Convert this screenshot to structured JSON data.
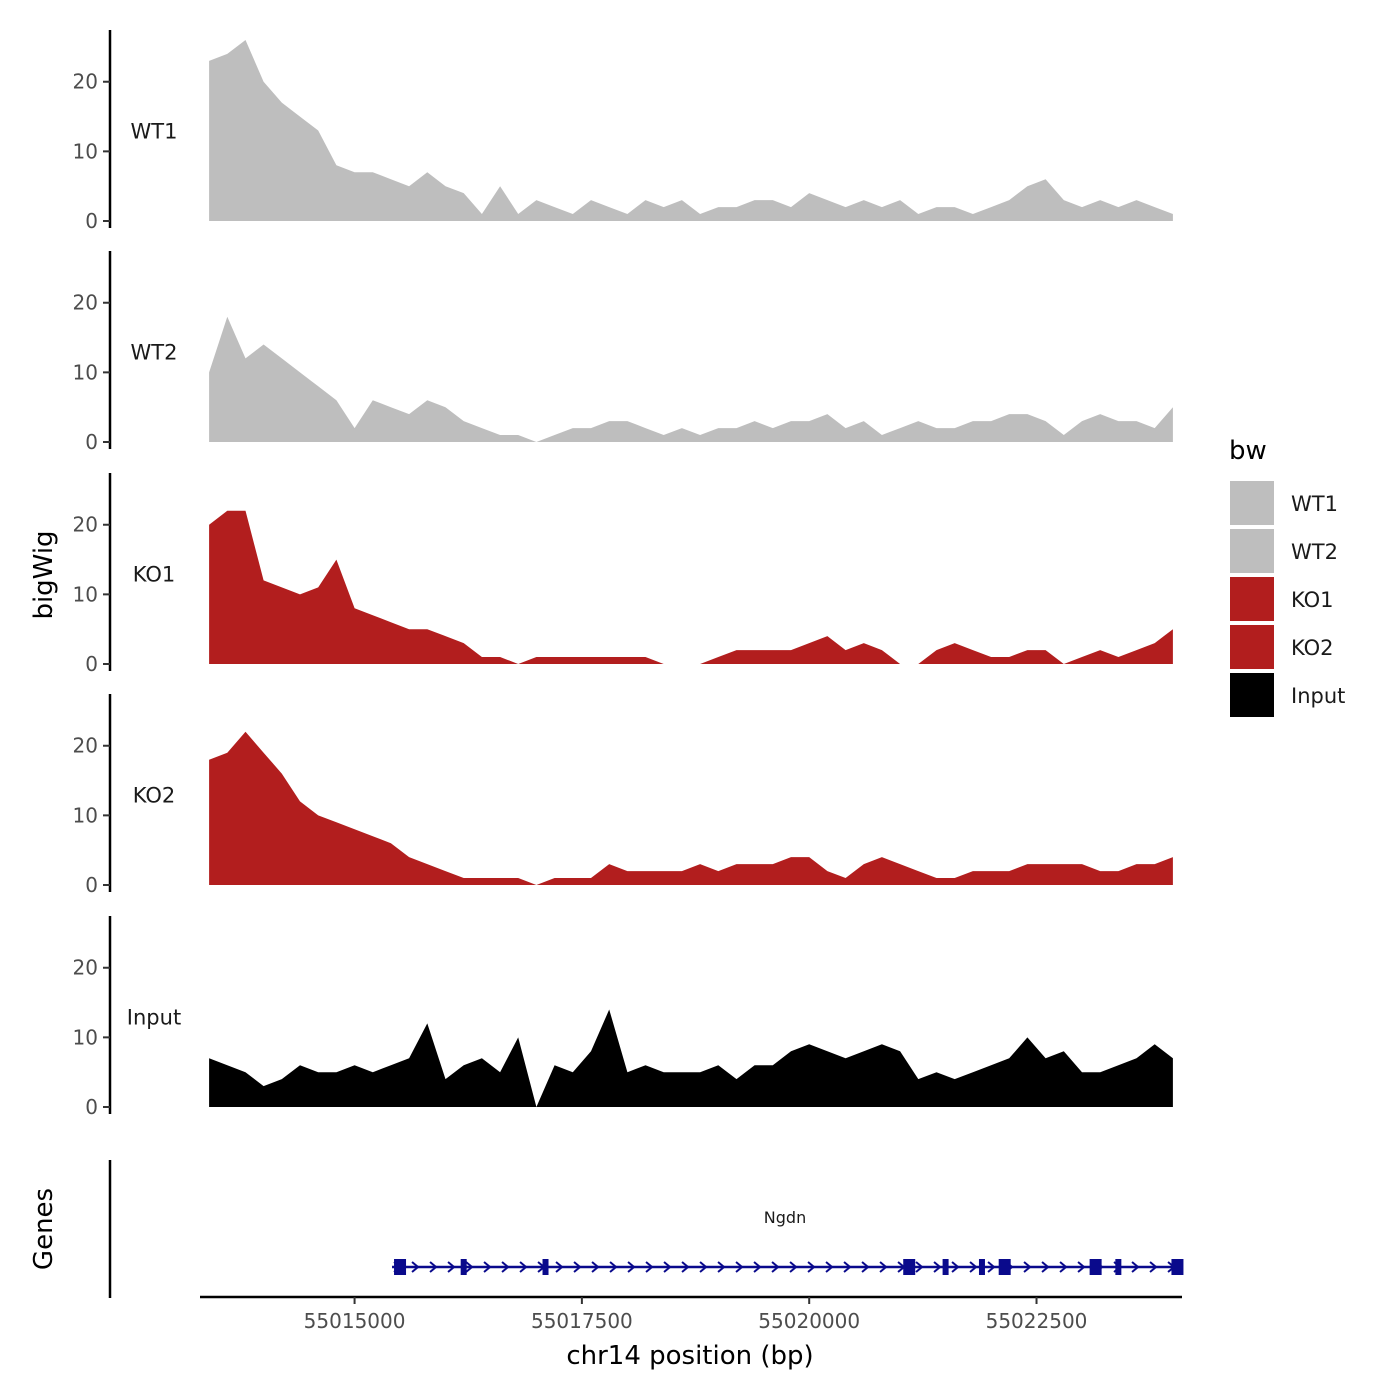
{
  "chart_data": {
    "type": "area",
    "title": "",
    "ylabel": "bigWig",
    "xlabel": "chr14 position (bp)",
    "genes_label": "Genes",
    "x_range": [
      55013300,
      55024100
    ],
    "x_ticks": [
      55015000,
      55017500,
      55020000,
      55022500
    ],
    "x_tick_labels": [
      "55015000",
      "55017500",
      "55020000",
      "55022500"
    ],
    "ylim": [
      0,
      27
    ],
    "y_ticks": [
      0,
      10,
      20
    ],
    "y_tick_labels": [
      "0",
      "10",
      "20"
    ],
    "x": [
      55013400,
      55013600,
      55013800,
      55014000,
      55014200,
      55014400,
      55014600,
      55014800,
      55015000,
      55015200,
      55015400,
      55015600,
      55015800,
      55016000,
      55016200,
      55016400,
      55016600,
      55016800,
      55017000,
      55017200,
      55017400,
      55017600,
      55017800,
      55018000,
      55018200,
      55018400,
      55018600,
      55018800,
      55019000,
      55019200,
      55019400,
      55019600,
      55019800,
      55020000,
      55020200,
      55020400,
      55020600,
      55020800,
      55021000,
      55021200,
      55021400,
      55021600,
      55021800,
      55022000,
      55022200,
      55022400,
      55022600,
      55022800,
      55023000,
      55023200,
      55023400,
      55023600,
      55023800,
      55024000
    ],
    "series": [
      {
        "name": "WT1",
        "color": "#bebebe",
        "values": [
          23,
          24,
          26,
          20,
          17,
          15,
          13,
          8,
          7,
          7,
          6,
          5,
          7,
          5,
          4,
          1,
          5,
          1,
          3,
          2,
          1,
          3,
          2,
          1,
          3,
          2,
          3,
          1,
          2,
          2,
          3,
          3,
          2,
          4,
          3,
          2,
          3,
          2,
          3,
          1,
          2,
          2,
          1,
          2,
          3,
          5,
          6,
          3,
          2,
          3,
          2,
          3,
          2,
          1
        ]
      },
      {
        "name": "WT2",
        "color": "#bebebe",
        "values": [
          10,
          18,
          12,
          14,
          12,
          10,
          8,
          6,
          2,
          6,
          5,
          4,
          6,
          5,
          3,
          2,
          1,
          1,
          0,
          1,
          2,
          2,
          3,
          3,
          2,
          1,
          2,
          1,
          2,
          2,
          3,
          2,
          3,
          3,
          4,
          2,
          3,
          1,
          2,
          3,
          2,
          2,
          3,
          3,
          4,
          4,
          3,
          1,
          3,
          4,
          3,
          3,
          2,
          5
        ]
      },
      {
        "name": "KO1",
        "color": "#b21e1e",
        "values": [
          20,
          22,
          22,
          12,
          11,
          10,
          11,
          15,
          8,
          7,
          6,
          5,
          5,
          4,
          3,
          1,
          1,
          0,
          1,
          1,
          1,
          1,
          1,
          1,
          1,
          0,
          0,
          0,
          1,
          2,
          2,
          2,
          2,
          3,
          4,
          2,
          3,
          2,
          0,
          0,
          2,
          3,
          2,
          1,
          1,
          2,
          2,
          0,
          1,
          2,
          1,
          2,
          3,
          5
        ]
      },
      {
        "name": "KO2",
        "color": "#b21e1e",
        "values": [
          18,
          19,
          22,
          19,
          16,
          12,
          10,
          9,
          8,
          7,
          6,
          4,
          3,
          2,
          1,
          1,
          1,
          1,
          0,
          1,
          1,
          1,
          3,
          2,
          2,
          2,
          2,
          3,
          2,
          3,
          3,
          3,
          4,
          4,
          2,
          1,
          3,
          4,
          3,
          2,
          1,
          1,
          2,
          2,
          2,
          3,
          3,
          3,
          3,
          2,
          2,
          3,
          3,
          4
        ]
      },
      {
        "name": "Input",
        "color": "#000000",
        "values": [
          7,
          6,
          5,
          3,
          4,
          6,
          5,
          5,
          6,
          5,
          6,
          7,
          12,
          4,
          6,
          7,
          5,
          10,
          0,
          6,
          5,
          8,
          14,
          5,
          6,
          5,
          5,
          5,
          6,
          4,
          6,
          6,
          8,
          9,
          8,
          7,
          8,
          9,
          8,
          4,
          5,
          4,
          5,
          6,
          7,
          10,
          7,
          8,
          5,
          5,
          6,
          7,
          9,
          7
        ]
      }
    ],
    "gene": {
      "name": "Ngdn",
      "start": 55015500,
      "end": 55024100,
      "color": "#0a0a8c",
      "exons": [
        55015500,
        55016200,
        55017100,
        55021100,
        55021500,
        55021900,
        55022150,
        55023150,
        55023400,
        55024050
      ]
    },
    "legend": {
      "title": "bw",
      "position": "right"
    }
  }
}
